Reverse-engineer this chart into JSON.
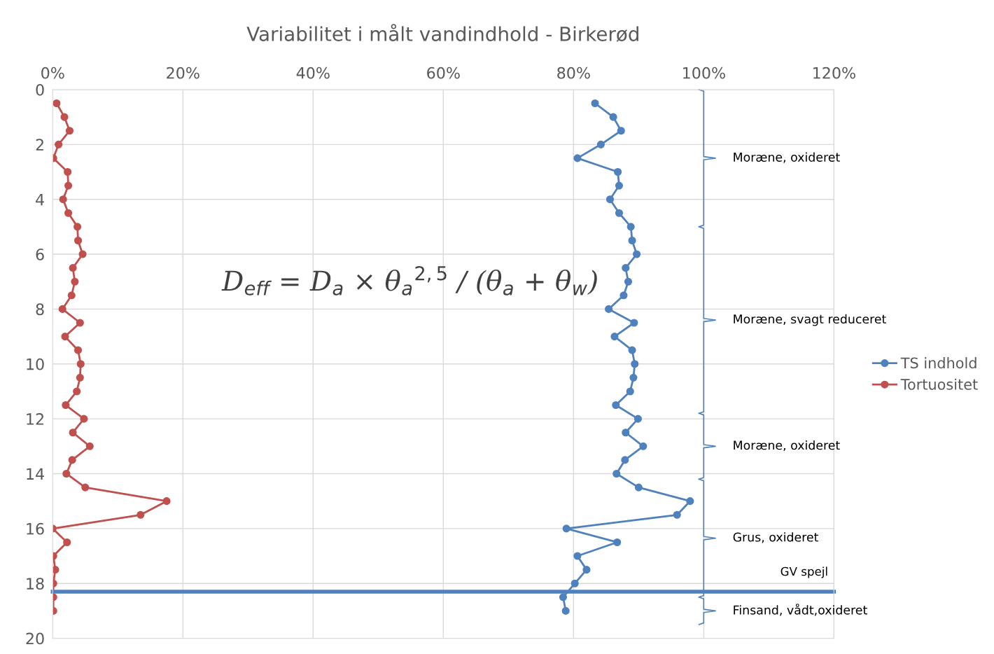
{
  "chart_data": {
    "type": "line",
    "title": "Variabilitet i målt vandindhold - Birkerød",
    "series": [
      {
        "name": "TS indhold",
        "color": "#4f81bd",
        "x": [
          83.3,
          86.1,
          87.3,
          84.2,
          80.6,
          86.8,
          87.0,
          85.6,
          87.0,
          88.8,
          89.0,
          89.7,
          88.0,
          88.4,
          87.7,
          85.4,
          89.3,
          86.3,
          89.0,
          89.4,
          89.2,
          88.7,
          86.5,
          89.9,
          88.0,
          90.7,
          87.9,
          86.6,
          90.0,
          97.9,
          95.9,
          78.9,
          86.7,
          80.6,
          82.0,
          80.2,
          78.4,
          78.8
        ],
        "values": [
          0.5,
          1,
          1.5,
          2,
          2.5,
          3,
          3.5,
          4,
          4.5,
          5,
          5.5,
          6,
          6.5,
          7,
          7.5,
          8,
          8.5,
          9,
          9.5,
          10,
          10.5,
          11,
          11.5,
          12,
          12.5,
          13,
          13.5,
          14,
          14.5,
          15,
          15.5,
          16,
          16.5,
          17,
          17.5,
          18,
          18.5,
          19
        ]
      },
      {
        "name": "Tortuositet",
        "color": "#c0504d",
        "x": [
          0.6,
          1.8,
          2.6,
          0.9,
          0.1,
          2.3,
          2.4,
          1.6,
          2.4,
          3.8,
          3.9,
          4.6,
          3.1,
          3.4,
          2.9,
          1.5,
          4.2,
          1.9,
          3.9,
          4.3,
          4.2,
          3.7,
          2.0,
          4.8,
          3.1,
          5.7,
          3.0,
          2.1,
          5.0,
          17.5,
          13.5,
          0.0,
          2.2,
          0.1,
          0.4,
          0.1,
          0.1,
          0.1
        ],
        "values": [
          0.5,
          1,
          1.5,
          2,
          2.5,
          3,
          3.5,
          4,
          4.5,
          5,
          5.5,
          6,
          6.5,
          7,
          7.5,
          8,
          8.5,
          9,
          9.5,
          10,
          10.5,
          11,
          11.5,
          12,
          12.5,
          13,
          13.5,
          14,
          14.5,
          15,
          15.5,
          16,
          16.5,
          17,
          17.5,
          18,
          18.5,
          19
        ]
      }
    ],
    "xlim": [
      0,
      120
    ],
    "xticks": [
      {
        "value": 0,
        "label": "0%"
      },
      {
        "value": 20,
        "label": "20%"
      },
      {
        "value": 40,
        "label": "40%"
      },
      {
        "value": 60,
        "label": "60%"
      },
      {
        "value": 80,
        "label": "80%"
      },
      {
        "value": 100,
        "label": "100%"
      },
      {
        "value": 120,
        "label": "120%"
      }
    ],
    "ylim": [
      20,
      0
    ],
    "yticks": [
      0,
      2,
      4,
      6,
      8,
      10,
      12,
      14,
      16,
      18,
      20
    ],
    "grid": true,
    "legend": "right",
    "marker": "circle",
    "line_style": "solid",
    "ref_lines": [
      {
        "axis": "y",
        "value": 18.3,
        "label": "GV spejl",
        "color": "#4f81bd"
      }
    ],
    "annotations": [
      "D$_{eff}$ = D$_{a}$ × θ$_{a}$$^{2,5}$ / (θ$_{a}$ + θ$_{w}$)",
      "Moræne, oxideret",
      "Moræne, svagt reduceret",
      "Moræne, oxideret",
      "Grus, oxideret",
      "Finsand, vådt,oxideret"
    ]
  }
}
